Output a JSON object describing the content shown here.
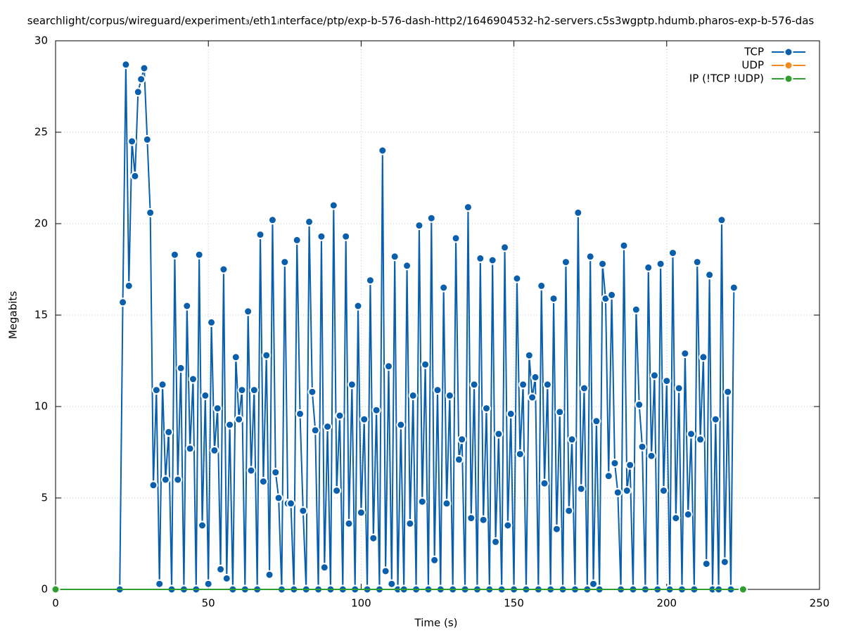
{
  "chart_data": {
    "type": "line",
    "title": "searchlight/corpus/wireguard/experiment₃/eth1ᵢnterface/ptp/exp-b-576-dash-http2/1646904532-h2-servers.c5s3wgptp.hdumb.pharos-exp-b-576-das",
    "x_label": "Time (s)",
    "y_label": "Megabits",
    "xlim": [
      0,
      250
    ],
    "xticks": [
      0,
      50,
      100,
      150,
      200,
      250
    ],
    "ylim": [
      0,
      30
    ],
    "yticks": [
      0,
      5,
      10,
      15,
      20,
      25,
      30
    ],
    "grid": true,
    "legend": "top-right",
    "series": [
      {
        "name": "TCP",
        "color": "#0a5fad",
        "x": [
          21,
          22,
          23,
          24,
          25,
          26,
          27,
          28,
          29,
          30,
          31,
          32,
          33,
          34,
          35,
          36,
          37,
          38,
          39,
          40,
          41,
          42,
          43,
          44,
          45,
          46,
          47,
          48,
          49,
          50,
          51,
          52,
          53,
          54,
          55,
          56,
          57,
          58,
          59,
          60,
          61,
          62,
          63,
          64,
          65,
          66,
          67,
          68,
          69,
          70,
          71,
          72,
          73,
          74,
          75,
          76,
          77,
          78,
          79,
          80,
          81,
          82,
          83,
          84,
          85,
          86,
          87,
          88,
          89,
          90,
          91,
          92,
          93,
          94,
          95,
          96,
          97,
          98,
          99,
          100,
          101,
          102,
          103,
          104,
          105,
          106,
          107,
          108,
          109,
          110,
          111,
          112,
          113,
          114,
          115,
          116,
          117,
          118,
          119,
          120,
          121,
          122,
          123,
          124,
          125,
          126,
          127,
          128,
          129,
          130,
          131,
          132,
          133,
          134,
          135,
          136,
          137,
          138,
          139,
          140,
          141,
          142,
          143,
          144,
          145,
          146,
          147,
          148,
          149,
          150,
          151,
          152,
          153,
          154,
          155,
          156,
          157,
          158,
          159,
          160,
          161,
          162,
          163,
          164,
          165,
          166,
          167,
          168,
          169,
          170,
          171,
          172,
          173,
          174,
          175,
          176,
          177,
          178,
          179,
          180,
          181,
          182,
          183,
          184,
          185,
          186,
          187,
          188,
          189,
          190,
          191,
          192,
          193,
          194,
          195,
          196,
          197,
          198,
          199,
          200,
          201,
          202,
          203,
          204,
          205,
          206,
          207,
          208,
          209,
          210,
          211,
          212,
          213,
          214,
          215,
          216,
          217,
          218,
          219,
          220,
          221,
          222
        ],
        "values": [
          0,
          15.7,
          28.7,
          16.6,
          24.5,
          22.6,
          27.2,
          27.9,
          28.5,
          24.6,
          20.6,
          5.7,
          10.9,
          0.3,
          11.2,
          6.0,
          8.6,
          0,
          18.3,
          6.0,
          12.1,
          0,
          15.5,
          7.7,
          11.5,
          0,
          18.3,
          3.5,
          10.6,
          0.3,
          14.6,
          7.6,
          9.9,
          1.1,
          17.5,
          0.6,
          9.0,
          0,
          12.7,
          9.3,
          10.9,
          0,
          15.2,
          6.5,
          10.9,
          0,
          19.4,
          5.9,
          12.8,
          0.8,
          20.2,
          6.4,
          5.0,
          0,
          17.9,
          4.7,
          4.7,
          0,
          19.1,
          9.6,
          4.3,
          0,
          20.1,
          10.8,
          8.7,
          0,
          19.3,
          1.2,
          8.9,
          0,
          21.0,
          5.4,
          9.5,
          0,
          19.3,
          3.6,
          11.2,
          0,
          15.5,
          4.2,
          9.3,
          0,
          16.9,
          2.8,
          9.8,
          0,
          24.0,
          1.0,
          12.2,
          0.3,
          18.2,
          0,
          9.0,
          0,
          17.7,
          3.6,
          10.6,
          0,
          19.9,
          4.8,
          12.3,
          0,
          20.3,
          1.6,
          10.9,
          0,
          16.5,
          4.7,
          10.6,
          0,
          19.2,
          7.1,
          8.2,
          0,
          20.9,
          3.9,
          11.2,
          0,
          18.1,
          3.8,
          9.9,
          0,
          18.0,
          2.6,
          8.5,
          0,
          18.7,
          3.5,
          9.6,
          0,
          17.0,
          7.4,
          11.2,
          0,
          12.8,
          10.5,
          11.6,
          0,
          16.6,
          5.8,
          11.2,
          0,
          15.9,
          3.3,
          9.7,
          0,
          17.9,
          4.3,
          8.2,
          0,
          20.6,
          5.5,
          11.0,
          0,
          18.2,
          0.3,
          9.2,
          0,
          17.8,
          15.9,
          6.2,
          16.1,
          6.9,
          5.3,
          0,
          18.8,
          5.4,
          6.8,
          0,
          15.3,
          10.1,
          7.8,
          0,
          17.6,
          7.3,
          11.7,
          0,
          17.8,
          5.4,
          11.4,
          0,
          18.4,
          3.9,
          11.0,
          0,
          12.9,
          4.1,
          8.5,
          0,
          17.9,
          8.2,
          12.7,
          1.4,
          17.2,
          0,
          9.3,
          0,
          20.2,
          1.5,
          10.8,
          0,
          16.5
        ]
      },
      {
        "name": "UDP",
        "color": "#f28a1e",
        "x": [],
        "values": []
      },
      {
        "name": "IP (!TCP  !UDP)",
        "color": "#2e9e33",
        "x": [
          0,
          225
        ],
        "values": [
          0,
          0
        ]
      }
    ]
  }
}
